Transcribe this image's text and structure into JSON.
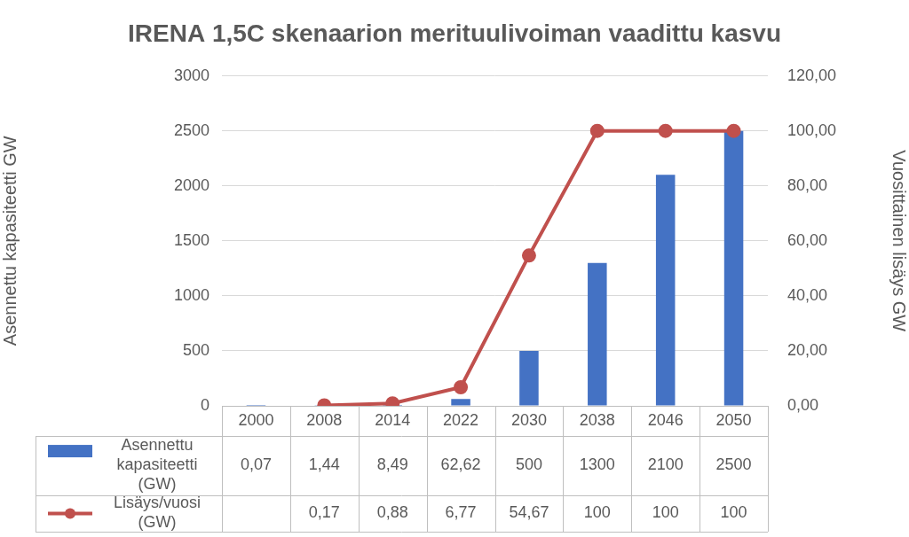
{
  "chart_data": {
    "type": "bar",
    "title": "IRENA 1,5C skenaarion merituulivoiman vaadittu kasvu",
    "categories": [
      "2000",
      "2008",
      "2014",
      "2022",
      "2030",
      "2038",
      "2046",
      "2050"
    ],
    "series": [
      {
        "name": "Asennettu kapasiteetti (GW)",
        "type": "bar",
        "color": "#4472c4",
        "values": [
          0.07,
          1.44,
          8.49,
          62.62,
          500,
          1300,
          2100,
          2500
        ],
        "value_labels": [
          "0,07",
          "1,44",
          "8,49",
          "62,62",
          "500",
          "1300",
          "2100",
          "2500"
        ]
      },
      {
        "name": "Lisäys/vuosi (GW)",
        "type": "line",
        "color": "#c0504d",
        "marker": "circle",
        "line_style": "solid",
        "axis": "y2",
        "values": [
          null,
          0.17,
          0.88,
          6.77,
          54.67,
          100,
          100,
          100
        ],
        "value_labels": [
          null,
          "0,17",
          "0,88",
          "6,77",
          "54,67",
          "100",
          "100",
          "100"
        ]
      }
    ],
    "y_label": "Asennettu kapasiteetti GW",
    "y2_label": "Vuosittainen lisäys GW",
    "ylim": [
      0,
      3000
    ],
    "yticks": [
      0,
      500,
      1000,
      1500,
      2000,
      2500,
      3000
    ],
    "y2lim": [
      0,
      120
    ],
    "y2ticks": [
      {
        "value": 0,
        "label": "0,00"
      },
      {
        "value": 20,
        "label": "20,00"
      },
      {
        "value": 40,
        "label": "40,00"
      },
      {
        "value": 60,
        "label": "60,00"
      },
      {
        "value": 80,
        "label": "80,00"
      },
      {
        "value": 100,
        "label": "100,00"
      },
      {
        "value": 120,
        "label": "120,00"
      }
    ],
    "grid": true,
    "data_labels": true
  }
}
